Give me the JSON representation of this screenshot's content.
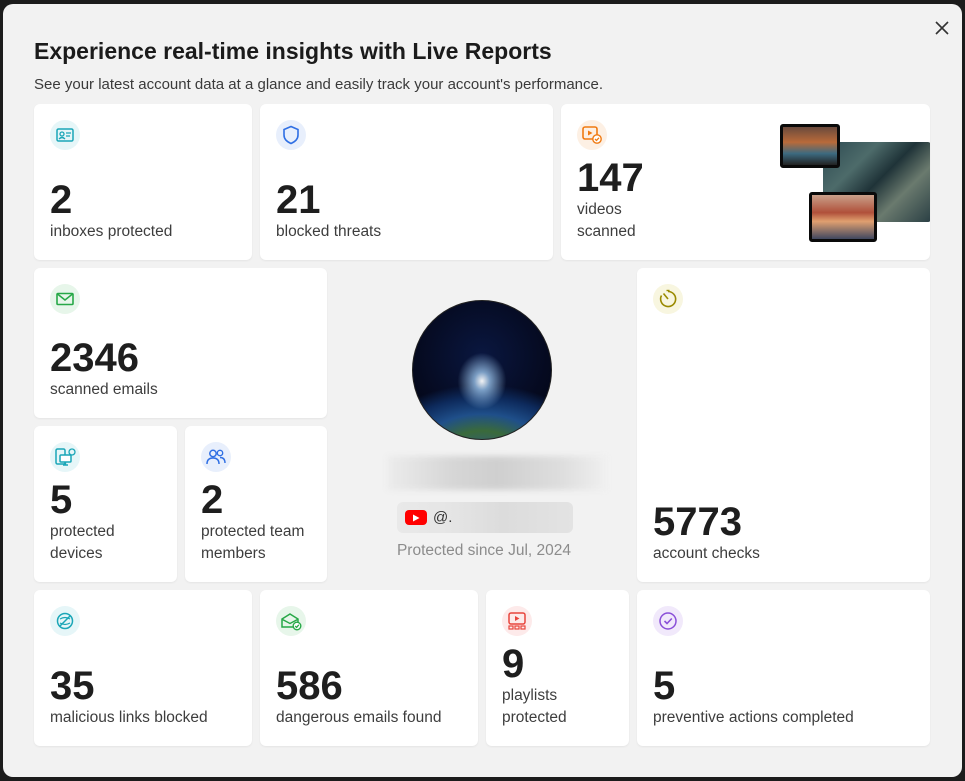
{
  "modal": {
    "title": "Experience real-time insights with Live Reports",
    "subtitle": "See your latest account data at a glance and easily track your account's performance."
  },
  "stats": {
    "inboxes": {
      "value": "2",
      "label": "inboxes protected",
      "icon": "inbox-icon",
      "color": "#1aa6b7"
    },
    "threats": {
      "value": "21",
      "label": "blocked threats",
      "icon": "shield-icon",
      "color": "#2f6fe4"
    },
    "videos": {
      "value": "147",
      "label_line1": "videos",
      "label_line2": "scanned",
      "icon": "video-check-icon",
      "color": "#f07a12"
    },
    "emails": {
      "value": "2346",
      "label": "scanned emails",
      "icon": "envelope-icon",
      "color": "#27a847"
    },
    "devices": {
      "value": "5",
      "label_line1": "protected",
      "label_line2": "devices",
      "icon": "devices-icon",
      "color": "#1aa6b7"
    },
    "team": {
      "value": "2",
      "label_line1": "protected team",
      "label_line2": "members",
      "icon": "users-icon",
      "color": "#2f6fe4"
    },
    "checks": {
      "value": "5773",
      "label": "account checks",
      "icon": "timer-icon",
      "color": "#9a8a00"
    },
    "links": {
      "value": "35",
      "label": "malicious links blocked",
      "icon": "blocked-link-icon",
      "color": "#1aa6b7"
    },
    "dangerous": {
      "value": "586",
      "label": "dangerous emails found",
      "icon": "mail-check-icon",
      "color": "#27a847"
    },
    "playlists": {
      "value": "9",
      "label_line1": "playlists",
      "label_line2": "protected",
      "icon": "playlist-icon",
      "color": "#e8453c"
    },
    "preventive": {
      "value": "5",
      "label": "preventive actions completed",
      "icon": "check-circle-icon",
      "color": "#8a4fd8"
    }
  },
  "profile": {
    "handle_prefix": "@.",
    "since": "Protected since Jul, 2024"
  }
}
